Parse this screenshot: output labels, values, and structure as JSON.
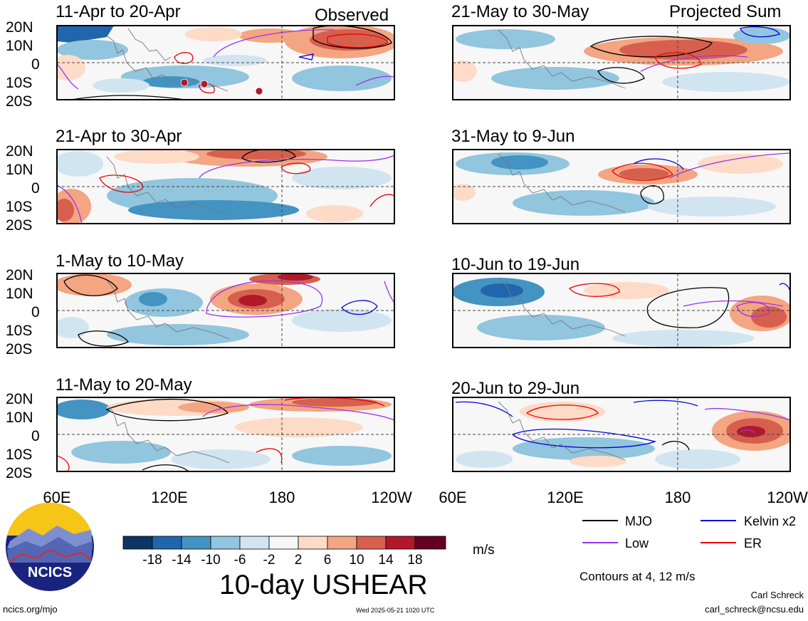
{
  "headers": {
    "left": "Observed",
    "right": "Projected Sum"
  },
  "panels_left": [
    {
      "period": "11-Apr to 20-Apr"
    },
    {
      "period": "21-Apr to 30-Apr"
    },
    {
      "period": "1-May to 10-May"
    },
    {
      "period": "11-May to 20-May"
    }
  ],
  "panels_right": [
    {
      "period": "21-May to 30-May"
    },
    {
      "period": "31-May to 9-Jun"
    },
    {
      "period": "10-Jun to 19-Jun"
    },
    {
      "period": "20-Jun to 29-Jun"
    }
  ],
  "lat_labels": [
    "20N",
    "10N",
    "0",
    "10S",
    "20S"
  ],
  "lon_labels": [
    "60E",
    "120E",
    "180",
    "120W"
  ],
  "colorbar": {
    "ticks": [
      "-18",
      "-14",
      "-10",
      "-6",
      "-2",
      "2",
      "6",
      "10",
      "14",
      "18"
    ],
    "colors": [
      "#0b3563",
      "#2166ac",
      "#4393c3",
      "#92c5de",
      "#d1e5f0",
      "#f7f7f7",
      "#fddbc7",
      "#f4a582",
      "#d6604d",
      "#b2182b",
      "#67001f"
    ],
    "units": "m/s"
  },
  "title": "10-day USHEAR",
  "contour_note": "Contours at 4, 12 m/s",
  "legend": [
    {
      "label": "MJO",
      "color": "#000000"
    },
    {
      "label": "Kelvin x2",
      "color": "#0000dd"
    },
    {
      "label": "Low",
      "color": "#9933ee"
    },
    {
      "label": "ER",
      "color": "#ee0000"
    }
  ],
  "logo": {
    "text": "NCICS"
  },
  "footer": {
    "url": "ncics.org/mjo",
    "timestamp": "Wed 2025-05-21 1020 UTC",
    "author": "Carl Schreck",
    "email": "carl_schreck@ncsu.edu"
  }
}
